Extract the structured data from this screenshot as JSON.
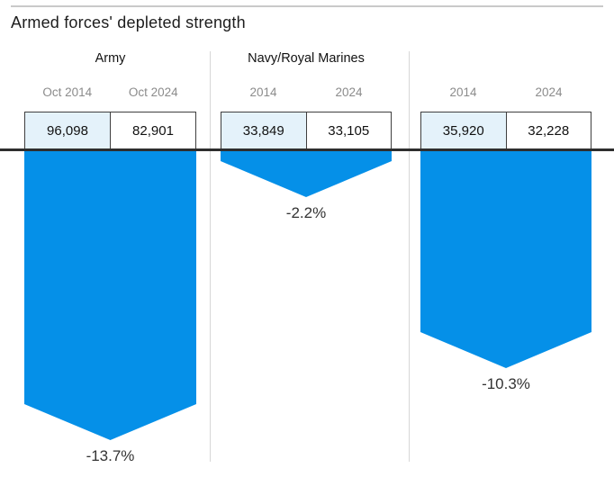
{
  "title": "Armed forces' depleted strength",
  "chart_data": {
    "type": "bar",
    "title": "Armed forces' depleted strength",
    "direction": "downward-arrows",
    "groups": [
      {
        "name": "Army",
        "columns": [
          "Oct 2014",
          "Oct 2024"
        ],
        "values": [
          96098,
          82901
        ],
        "display_values": [
          "96,098",
          "82,901"
        ],
        "change_pct": -13.7,
        "change_label": "-13.7%"
      },
      {
        "name": "Navy/Royal Marines",
        "columns": [
          "2014",
          "2024"
        ],
        "values": [
          33849,
          33105
        ],
        "display_values": [
          "33,849",
          "33,105"
        ],
        "change_pct": -2.2,
        "change_label": "-2.2%"
      },
      {
        "name": "",
        "columns": [
          "2014",
          "2024"
        ],
        "values": [
          35920,
          32228
        ],
        "display_values": [
          "35,920",
          "32,228"
        ],
        "change_pct": -10.3,
        "change_label": "-10.3%"
      }
    ],
    "colors": {
      "arrow_blue": "#0590E8",
      "cell_2014_bg": "#E4F2FA",
      "cell_2024_bg": "#FFFFFF",
      "baseline": "#2E2E2E",
      "box_border": "#3F3F3F"
    }
  }
}
